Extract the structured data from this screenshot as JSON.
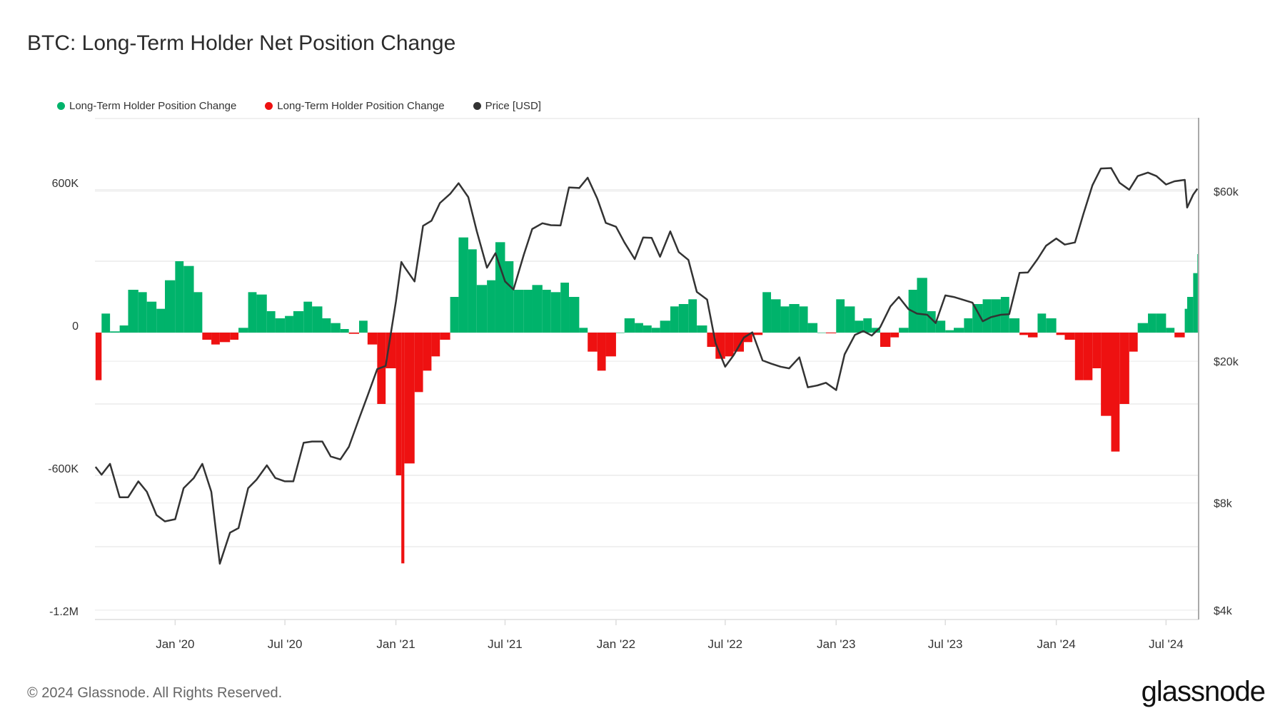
{
  "title": "BTC: Long-Term Holder Net Position Change",
  "legend": [
    {
      "label": "Long-Term Holder Position Change",
      "color": "#00b36b"
    },
    {
      "label": "Long-Term Holder Position Change",
      "color": "#ee1111"
    },
    {
      "label": "Price [USD]",
      "color": "#333333"
    }
  ],
  "footer": "© 2024 Glassnode. All Rights Reserved.",
  "logo": "glassnode",
  "chart_data": {
    "type": "bar",
    "title": "BTC: Long-Term Holder Net Position Change",
    "x_range": [
      "2019-08-21",
      "2024-08-24"
    ],
    "x_ticks": [
      {
        "date": "2020-01-01",
        "label": "Jan '20"
      },
      {
        "date": "2020-07-01",
        "label": "Jul '20"
      },
      {
        "date": "2021-01-01",
        "label": "Jan '21"
      },
      {
        "date": "2021-07-01",
        "label": "Jul '21"
      },
      {
        "date": "2022-01-01",
        "label": "Jan '22"
      },
      {
        "date": "2022-07-01",
        "label": "Jul '22"
      },
      {
        "date": "2023-01-01",
        "label": "Jan '23"
      },
      {
        "date": "2023-07-01",
        "label": "Jul '23"
      },
      {
        "date": "2024-01-01",
        "label": "Jan '24"
      },
      {
        "date": "2024-07-01",
        "label": "Jul '24"
      }
    ],
    "y_left": {
      "range": [
        -1200000,
        900000
      ],
      "ticks": [
        {
          "v": 600000,
          "label": "600K"
        },
        {
          "v": 0,
          "label": "0"
        },
        {
          "v": -600000,
          "label": "-600K"
        },
        {
          "v": -1200000,
          "label": "-1.2M"
        }
      ]
    },
    "y_right": {
      "scale": "log",
      "ticks": [
        {
          "v": 60000,
          "label": "$60k"
        },
        {
          "v": 20000,
          "label": "$20k"
        },
        {
          "v": 8000,
          "label": "$8k"
        },
        {
          "v": 4000,
          "label": "$4k"
        }
      ]
    },
    "grid": true,
    "positive_color": "#00b36b",
    "negative_color": "#ee1111",
    "price_color": "#333333",
    "dates": [
      "2019-08-22",
      "2019-09-01",
      "2019-09-15",
      "2019-10-01",
      "2019-10-15",
      "2019-11-01",
      "2019-11-15",
      "2019-12-01",
      "2019-12-15",
      "2020-01-01",
      "2020-01-15",
      "2020-02-01",
      "2020-02-15",
      "2020-03-01",
      "2020-03-15",
      "2020-04-01",
      "2020-04-15",
      "2020-05-01",
      "2020-05-15",
      "2020-06-01",
      "2020-06-15",
      "2020-07-01",
      "2020-07-15",
      "2020-08-01",
      "2020-08-15",
      "2020-09-01",
      "2020-09-15",
      "2020-10-01",
      "2020-10-15",
      "2020-11-01",
      "2020-11-15",
      "2020-12-01",
      "2020-12-15",
      "2021-01-01",
      "2021-01-10",
      "2021-01-15",
      "2021-02-01",
      "2021-02-15",
      "2021-03-01",
      "2021-03-15",
      "2021-04-01",
      "2021-04-15",
      "2021-05-01",
      "2021-05-15",
      "2021-06-01",
      "2021-06-15",
      "2021-07-01",
      "2021-07-15",
      "2021-08-01",
      "2021-08-15",
      "2021-09-01",
      "2021-09-15",
      "2021-10-01",
      "2021-10-15",
      "2021-11-01",
      "2021-11-15",
      "2021-12-01",
      "2021-12-15",
      "2022-01-01",
      "2022-01-15",
      "2022-02-01",
      "2022-02-15",
      "2022-03-01",
      "2022-03-15",
      "2022-04-01",
      "2022-04-15",
      "2022-05-01",
      "2022-05-15",
      "2022-06-01",
      "2022-06-15",
      "2022-07-01",
      "2022-07-15",
      "2022-08-01",
      "2022-08-15",
      "2022-09-01",
      "2022-09-15",
      "2022-10-01",
      "2022-10-15",
      "2022-11-01",
      "2022-11-15",
      "2022-12-01",
      "2022-12-15",
      "2023-01-01",
      "2023-01-15",
      "2023-02-01",
      "2023-02-15",
      "2023-03-01",
      "2023-03-15",
      "2023-04-01",
      "2023-04-15",
      "2023-05-01",
      "2023-05-15",
      "2023-06-01",
      "2023-06-15",
      "2023-07-01",
      "2023-07-15",
      "2023-08-01",
      "2023-08-15",
      "2023-09-01",
      "2023-09-15",
      "2023-10-01",
      "2023-10-15",
      "2023-11-01",
      "2023-11-15",
      "2023-12-01",
      "2023-12-15",
      "2024-01-01",
      "2024-01-15",
      "2024-02-01",
      "2024-02-15",
      "2024-03-01",
      "2024-03-15",
      "2024-04-01",
      "2024-04-15",
      "2024-05-01",
      "2024-05-15",
      "2024-06-01",
      "2024-06-15",
      "2024-07-01",
      "2024-07-15",
      "2024-08-01",
      "2024-08-05",
      "2024-08-15",
      "2024-08-22"
    ],
    "series": [
      {
        "name": "Long-Term Holder Position Change",
        "axis": "left",
        "values": [
          -200000,
          80000,
          5000,
          30000,
          180000,
          170000,
          130000,
          100000,
          220000,
          300000,
          280000,
          170000,
          -30000,
          -50000,
          -40000,
          -30000,
          20000,
          170000,
          160000,
          90000,
          60000,
          70000,
          90000,
          130000,
          110000,
          60000,
          40000,
          15000,
          -5000,
          50000,
          -50000,
          -300000,
          -150000,
          -600000,
          -970000,
          -550000,
          -250000,
          -160000,
          -100000,
          -30000,
          150000,
          400000,
          350000,
          200000,
          220000,
          380000,
          300000,
          180000,
          180000,
          200000,
          180000,
          170000,
          210000,
          150000,
          20000,
          -80000,
          -160000,
          -100000,
          0,
          60000,
          40000,
          30000,
          20000,
          50000,
          110000,
          120000,
          140000,
          30000,
          -60000,
          -110000,
          -100000,
          -80000,
          -40000,
          -10000,
          170000,
          140000,
          110000,
          120000,
          110000,
          40000,
          0,
          -3000,
          140000,
          110000,
          50000,
          60000,
          20000,
          -60000,
          -20000,
          20000,
          180000,
          230000,
          90000,
          50000,
          10000,
          20000,
          60000,
          120000,
          140000,
          140000,
          150000,
          60000,
          -10000,
          -20000,
          80000,
          60000,
          -10000,
          -30000,
          -200000,
          -200000,
          -150000,
          -350000,
          -500000,
          -300000,
          -80000,
          40000,
          80000,
          80000,
          20000,
          -20000,
          100000,
          150000,
          250000,
          330000
        ]
      },
      {
        "name": "Price [USD]",
        "axis": "right",
        "values": [
          10100,
          9600,
          10300,
          8300,
          8300,
          9200,
          8600,
          7400,
          7100,
          7200,
          8800,
          9400,
          10300,
          8600,
          5400,
          6600,
          6800,
          8800,
          9300,
          10200,
          9400,
          9200,
          9200,
          11800,
          11900,
          11900,
          10800,
          10600,
          11500,
          13800,
          16000,
          19000,
          19400,
          29400,
          38000,
          36800,
          33500,
          48000,
          49600,
          55600,
          59000,
          63200,
          57800,
          46400,
          36600,
          40200,
          33500,
          31800,
          39800,
          47000,
          48800,
          48200,
          48100,
          61500,
          61300,
          65500,
          57200,
          48900,
          47700,
          43100,
          38700,
          44500,
          44400,
          39300,
          46300,
          40500,
          38500,
          31300,
          29800,
          22500,
          19300,
          20800,
          23300,
          24100,
          20100,
          19700,
          19300,
          19100,
          20500,
          16900,
          17100,
          17400,
          16600,
          20900,
          23700,
          24300,
          23600,
          24900,
          28500,
          30300,
          28000,
          27200,
          27000,
          25600,
          30600,
          30300,
          29700,
          29200,
          25900,
          26600,
          27000,
          27100,
          35400,
          35500,
          38700,
          42200,
          44200,
          42500,
          43100,
          51800,
          62400,
          69500,
          69700,
          63400,
          60600,
          66200,
          67700,
          66200,
          62700,
          64000,
          64600,
          54000,
          58700,
          61000
        ]
      }
    ]
  }
}
